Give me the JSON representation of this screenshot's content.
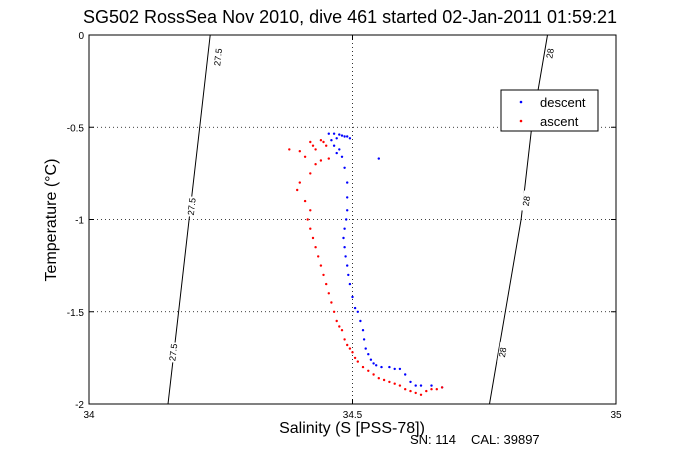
{
  "chart_data": {
    "type": "scatter",
    "title": "SG502 RossSea Nov 2010, dive 461 started 02-Jan-2011 01:59:21",
    "xlabel": "Salinity (S [PSS-78])",
    "ylabel": "Temperature (°C)",
    "xlim": [
      34,
      35
    ],
    "ylim": [
      -2,
      0
    ],
    "xticks": [
      34,
      34.5,
      35
    ],
    "xtick_labels": [
      "34",
      "34.5",
      "35"
    ],
    "yticks": [
      0,
      -0.5,
      -1,
      -1.5,
      -2
    ],
    "ytick_labels": [
      "0",
      "-0.5",
      "-1",
      "-1.5",
      "-2"
    ],
    "grid": true,
    "legend_position": "top-right",
    "series": [
      {
        "name": "descent",
        "color": "#0000ff",
        "points": [
          [
            34.455,
            -0.535
          ],
          [
            34.465,
            -0.535
          ],
          [
            34.475,
            -0.54
          ],
          [
            34.48,
            -0.545
          ],
          [
            34.485,
            -0.55
          ],
          [
            34.49,
            -0.55
          ],
          [
            34.495,
            -0.56
          ],
          [
            34.47,
            -0.56
          ],
          [
            34.46,
            -0.57
          ],
          [
            34.465,
            -0.6
          ],
          [
            34.475,
            -0.62
          ],
          [
            34.47,
            -0.64
          ],
          [
            34.48,
            -0.66
          ],
          [
            34.485,
            -0.72
          ],
          [
            34.49,
            -0.8
          ],
          [
            34.49,
            -0.88
          ],
          [
            34.49,
            -0.95
          ],
          [
            34.488,
            -1.0
          ],
          [
            34.485,
            -1.05
          ],
          [
            34.483,
            -1.1
          ],
          [
            34.485,
            -1.15
          ],
          [
            34.487,
            -1.2
          ],
          [
            34.49,
            -1.25
          ],
          [
            34.492,
            -1.3
          ],
          [
            34.495,
            -1.35
          ],
          [
            34.5,
            -1.42
          ],
          [
            34.505,
            -1.48
          ],
          [
            34.51,
            -1.5
          ],
          [
            34.515,
            -1.55
          ],
          [
            34.52,
            -1.6
          ],
          [
            34.522,
            -1.65
          ],
          [
            34.525,
            -1.7
          ],
          [
            34.53,
            -1.73
          ],
          [
            34.535,
            -1.76
          ],
          [
            34.54,
            -1.78
          ],
          [
            34.545,
            -1.79
          ],
          [
            34.555,
            -1.8
          ],
          [
            34.57,
            -1.8
          ],
          [
            34.58,
            -1.81
          ],
          [
            34.59,
            -1.81
          ],
          [
            34.6,
            -1.84
          ],
          [
            34.61,
            -1.88
          ],
          [
            34.62,
            -1.9
          ],
          [
            34.63,
            -1.9
          ],
          [
            34.65,
            -1.9
          ],
          [
            34.67,
            -1.91
          ],
          [
            34.55,
            -0.67
          ]
        ]
      },
      {
        "name": "ascent",
        "color": "#ff0000",
        "points": [
          [
            34.38,
            -0.62
          ],
          [
            34.4,
            -0.63
          ],
          [
            34.41,
            -0.66
          ],
          [
            34.42,
            -0.58
          ],
          [
            34.425,
            -0.6
          ],
          [
            34.43,
            -0.62
          ],
          [
            34.44,
            -0.57
          ],
          [
            34.445,
            -0.58
          ],
          [
            34.45,
            -0.6
          ],
          [
            34.455,
            -0.67
          ],
          [
            34.44,
            -0.68
          ],
          [
            34.43,
            -0.7
          ],
          [
            34.42,
            -0.75
          ],
          [
            34.4,
            -0.8
          ],
          [
            34.395,
            -0.84
          ],
          [
            34.41,
            -0.9
          ],
          [
            34.42,
            -0.95
          ],
          [
            34.415,
            -1.0
          ],
          [
            34.42,
            -1.05
          ],
          [
            34.425,
            -1.1
          ],
          [
            34.43,
            -1.15
          ],
          [
            34.435,
            -1.2
          ],
          [
            34.44,
            -1.25
          ],
          [
            34.445,
            -1.3
          ],
          [
            34.45,
            -1.35
          ],
          [
            34.455,
            -1.4
          ],
          [
            34.46,
            -1.45
          ],
          [
            34.465,
            -1.5
          ],
          [
            34.47,
            -1.55
          ],
          [
            34.475,
            -1.58
          ],
          [
            34.48,
            -1.6
          ],
          [
            34.485,
            -1.65
          ],
          [
            34.49,
            -1.68
          ],
          [
            34.495,
            -1.7
          ],
          [
            34.5,
            -1.72
          ],
          [
            34.505,
            -1.75
          ],
          [
            34.51,
            -1.77
          ],
          [
            34.52,
            -1.8
          ],
          [
            34.53,
            -1.82
          ],
          [
            34.54,
            -1.84
          ],
          [
            34.55,
            -1.86
          ],
          [
            34.56,
            -1.87
          ],
          [
            34.57,
            -1.88
          ],
          [
            34.58,
            -1.89
          ],
          [
            34.59,
            -1.9
          ],
          [
            34.6,
            -1.92
          ],
          [
            34.61,
            -1.93
          ],
          [
            34.62,
            -1.94
          ],
          [
            34.63,
            -1.95
          ],
          [
            34.64,
            -1.93
          ],
          [
            34.65,
            -1.92
          ],
          [
            34.66,
            -1.92
          ],
          [
            34.67,
            -1.91
          ]
        ]
      }
    ],
    "isopycnals": [
      {
        "label": "27.5",
        "points": [
          [
            34.23,
            0
          ],
          [
            34.21,
            -0.5
          ],
          [
            34.19,
            -1.0
          ],
          [
            34.17,
            -1.5
          ],
          [
            34.15,
            -2.0
          ]
        ],
        "label_positions": [
          [
            34.245,
            -0.12
          ],
          [
            34.195,
            -0.93
          ],
          [
            34.16,
            -1.72
          ]
        ]
      },
      {
        "label": "28",
        "points": [
          [
            34.87,
            0
          ],
          [
            34.84,
            -0.5
          ],
          [
            34.82,
            -1.0
          ],
          [
            34.79,
            -1.5
          ],
          [
            34.76,
            -2.0
          ]
        ],
        "label_positions": [
          [
            34.875,
            -0.1
          ],
          [
            34.83,
            -0.9
          ],
          [
            34.785,
            -1.72
          ]
        ]
      }
    ]
  },
  "footer": {
    "serial": "SN: 114",
    "cal": "CAL: 39897"
  }
}
